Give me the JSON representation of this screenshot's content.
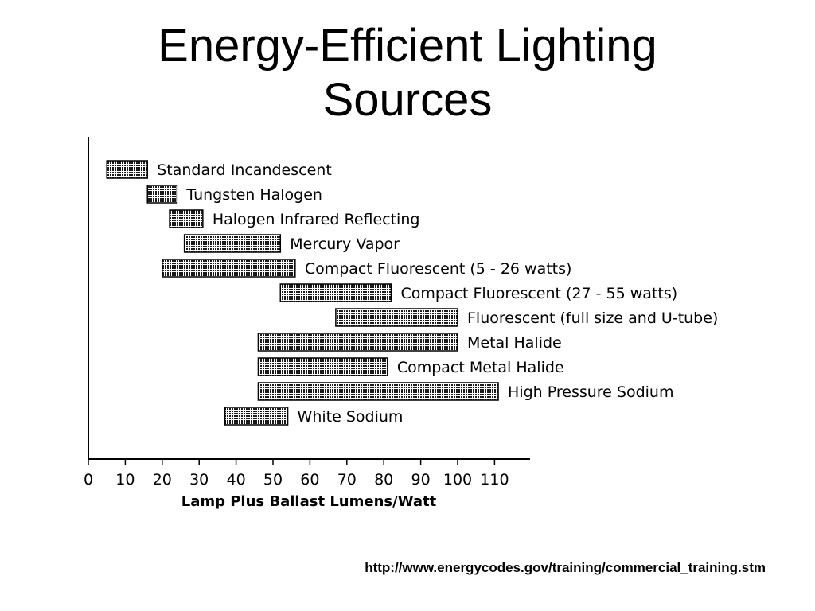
{
  "slide": {
    "title_lines": [
      "Energy-Efficient Lighting",
      "Sources"
    ],
    "source_url": "http://www.energycodes.gov/training/commercial_training.stm"
  },
  "colors": {
    "bar_fill": "#4a4a4a",
    "axis": "#000000",
    "text": "#000000"
  },
  "chart_data": {
    "type": "bar",
    "orientation": "horizontal-range",
    "title": "",
    "xlabel": "Lamp Plus Ballast Lumens/Watt",
    "ylabel": "",
    "xlim": [
      0,
      120
    ],
    "xticks": [
      0,
      10,
      20,
      30,
      40,
      50,
      60,
      70,
      80,
      90,
      100,
      110
    ],
    "grid": false,
    "categories": [
      "Standard Incandescent",
      "Tungsten Halogen",
      "Halogen Infrared Reflecting",
      "Mercury Vapor",
      "Compact Fluorescent (5 - 26 watts)",
      "Compact Fluorescent (27 - 55 watts)",
      "Fluorescent (full size and U-tube)",
      "Metal Halide",
      "Compact Metal Halide",
      "High Pressure Sodium",
      "White Sodium"
    ],
    "ranges": [
      [
        5,
        16
      ],
      [
        16,
        24
      ],
      [
        22,
        31
      ],
      [
        26,
        52
      ],
      [
        20,
        56
      ],
      [
        52,
        82
      ],
      [
        67,
        100
      ],
      [
        46,
        100
      ],
      [
        46,
        81
      ],
      [
        46,
        111
      ],
      [
        37,
        54
      ]
    ]
  }
}
